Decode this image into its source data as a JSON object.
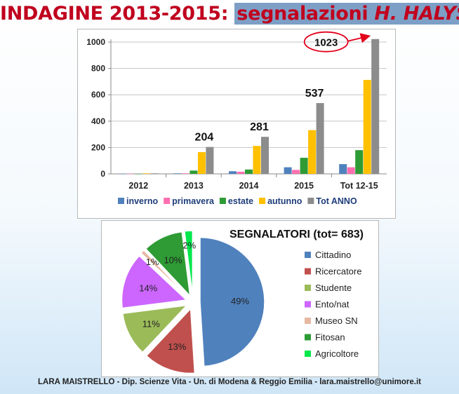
{
  "header": {
    "title_part1": "INDAGINE 2013-2015: ",
    "title_part2a": "segnalazioni ",
    "title_part2b": "H. HALYS"
  },
  "footer": {
    "text": "LARA MAISTRELLO - Dip. Scienze Vita - Un. di Modena & Reggio Emilia - lara.maistrello@unimore.it"
  },
  "chart_data": [
    {
      "type": "bar",
      "categories": [
        "2012",
        "2013",
        "2014",
        "2015",
        "Tot 12-15"
      ],
      "series": [
        {
          "name": "inverno",
          "color": "#4f81bd",
          "values": [
            0,
            4,
            20,
            50,
            74
          ]
        },
        {
          "name": "primavera",
          "color": "#ff6fb0",
          "values": [
            0,
            4,
            16,
            30,
            50
          ]
        },
        {
          "name": "estate",
          "color": "#2e9b35",
          "values": [
            0,
            25,
            33,
            122,
            180
          ]
        },
        {
          "name": "autunno",
          "color": "#ffc000",
          "values": [
            4,
            165,
            212,
            332,
            713
          ]
        },
        {
          "name": "Tot ANNO",
          "color": "#8c8c8c",
          "values": [
            4,
            204,
            281,
            537,
            1023
          ]
        }
      ],
      "annotations": [
        {
          "category": "2013",
          "text": "204"
        },
        {
          "category": "2014",
          "text": "281"
        },
        {
          "category": "2015",
          "text": "537"
        },
        {
          "category": "Tot 12-15",
          "text": "1023",
          "circled": true,
          "arrow": true,
          "circle_color": "#e3001b"
        }
      ],
      "ylim": [
        0,
        1000
      ],
      "yticks": [
        "0",
        "200",
        "400",
        "600",
        "800",
        "1000"
      ],
      "grid": true,
      "legend": "bottom"
    },
    {
      "type": "pie",
      "title": "SEGNALATORI (tot= 683)",
      "slices": [
        {
          "label": "Cittadino",
          "value": 49,
          "pct": "49%",
          "color": "#4f81bd"
        },
        {
          "label": "Ricercatore",
          "value": 13,
          "pct": "13%",
          "color": "#c0504d"
        },
        {
          "label": "Studente",
          "value": 11,
          "pct": "11%",
          "color": "#9bbb59"
        },
        {
          "label": "Ento/nat",
          "value": 14,
          "pct": "14%",
          "color": "#cc66ff"
        },
        {
          "label": "Museo SN",
          "value": 1,
          "pct": "1%",
          "color": "#e6b8a2"
        },
        {
          "label": "Fitosan",
          "value": 10,
          "pct": "10%",
          "color": "#2e9b35"
        },
        {
          "label": "Agricoltore",
          "value": 2,
          "pct": "2%",
          "color": "#00e84c"
        }
      ],
      "legend": "right",
      "exploded": true
    }
  ]
}
